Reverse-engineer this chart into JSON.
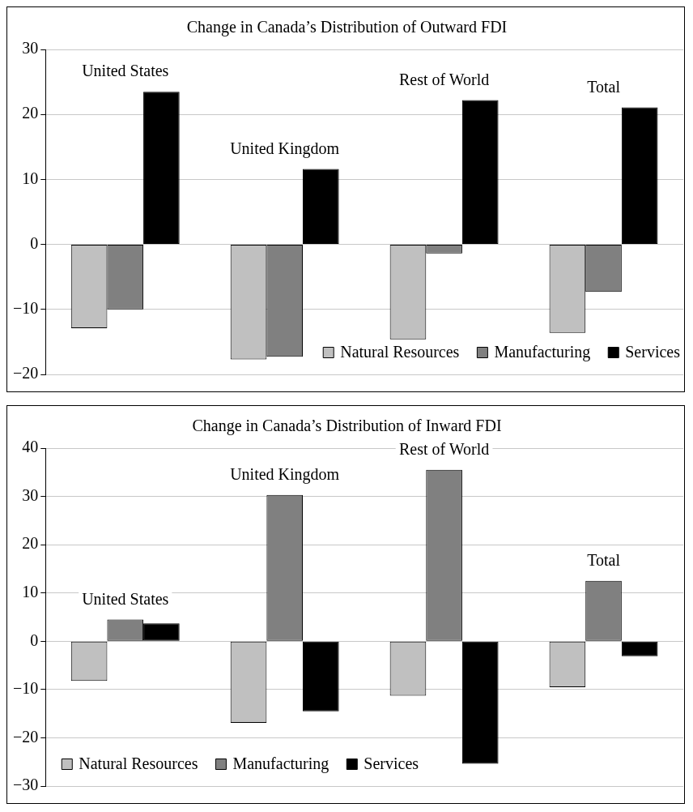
{
  "chart_data": [
    {
      "type": "bar",
      "title": "Change in Canada’s Distribution of Outward FDI",
      "categories": [
        "United States",
        "United Kingdom",
        "Rest of World",
        "Total"
      ],
      "series": [
        {
          "name": "Natural Resources",
          "color": "#c0c0c0",
          "values": [
            -12.9,
            -17.7,
            -14.6,
            -13.6
          ]
        },
        {
          "name": "Manufacturing",
          "color": "#808080",
          "values": [
            -10.0,
            -17.3,
            -1.4,
            -7.3
          ]
        },
        {
          "name": "Services",
          "color": "#000000",
          "values": [
            23.5,
            11.6,
            22.2,
            21.1
          ]
        }
      ],
      "ylim": [
        -20,
        30
      ],
      "yticks": [
        -20,
        -10,
        0,
        10,
        20,
        30
      ],
      "grid": "y",
      "legend": "bottom right",
      "tick_labels": "y"
    },
    {
      "type": "bar",
      "title": "Change in Canada’s Distribution of Inward FDI",
      "categories": [
        "United States",
        "United Kingdom",
        "Rest of World",
        "Total"
      ],
      "series": [
        {
          "name": "Natural Resources",
          "color": "#c0c0c0",
          "values": [
            -8.2,
            -16.9,
            -11.3,
            -9.5
          ]
        },
        {
          "name": "Manufacturing",
          "color": "#808080",
          "values": [
            4.5,
            30.3,
            35.5,
            12.5
          ]
        },
        {
          "name": "Services",
          "color": "#000000",
          "values": [
            3.7,
            -14.5,
            -25.4,
            -3.1
          ]
        }
      ],
      "ylim": [
        -30,
        40
      ],
      "yticks": [
        -30,
        -20,
        -10,
        0,
        10,
        20,
        30,
        40
      ],
      "grid": "y",
      "legend": "bottom left",
      "tick_labels": "y"
    }
  ]
}
